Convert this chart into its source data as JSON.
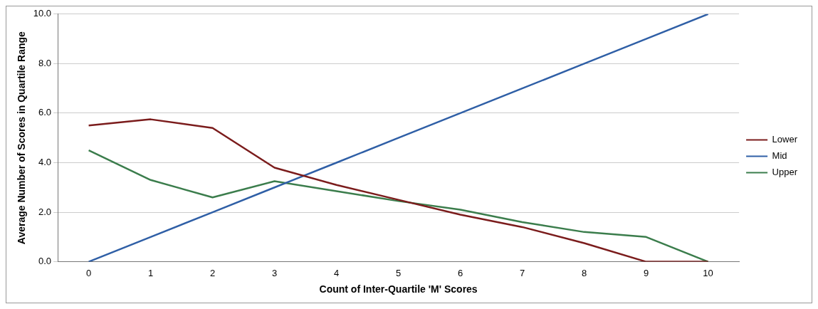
{
  "chart_data": {
    "type": "line",
    "xlabel": "Count of Inter-Quartile 'M' Scores",
    "ylabel": "Average Number of Scores in Quartile Range",
    "categories": [
      "0",
      "1",
      "2",
      "3",
      "4",
      "5",
      "6",
      "7",
      "8",
      "9",
      "10"
    ],
    "series": [
      {
        "name": "Lower",
        "color": "#7b1c1c",
        "values": [
          5.5,
          5.75,
          5.4,
          3.8,
          3.1,
          2.5,
          1.9,
          1.4,
          0.75,
          0,
          0
        ]
      },
      {
        "name": "Mid",
        "color": "#2f5fa6",
        "values": [
          0,
          1,
          2,
          3,
          4,
          5,
          6,
          7,
          8,
          9,
          10
        ]
      },
      {
        "name": "Upper",
        "color": "#3b7d4c",
        "values": [
          4.5,
          3.3,
          2.6,
          3.25,
          2.85,
          2.45,
          2.1,
          1.6,
          1.2,
          1.0,
          0
        ]
      }
    ],
    "ylim": [
      0,
      10
    ],
    "yticks": [
      {
        "value": 0,
        "label": "0.0"
      },
      {
        "value": 2,
        "label": "2.0"
      },
      {
        "value": 4,
        "label": "4.0"
      },
      {
        "value": 6,
        "label": "6.0"
      },
      {
        "value": 8,
        "label": "8.0"
      },
      {
        "value": 10,
        "label": "10.0"
      }
    ],
    "grid": "y",
    "legend": "right",
    "marker": "none",
    "line_style": "solid"
  }
}
